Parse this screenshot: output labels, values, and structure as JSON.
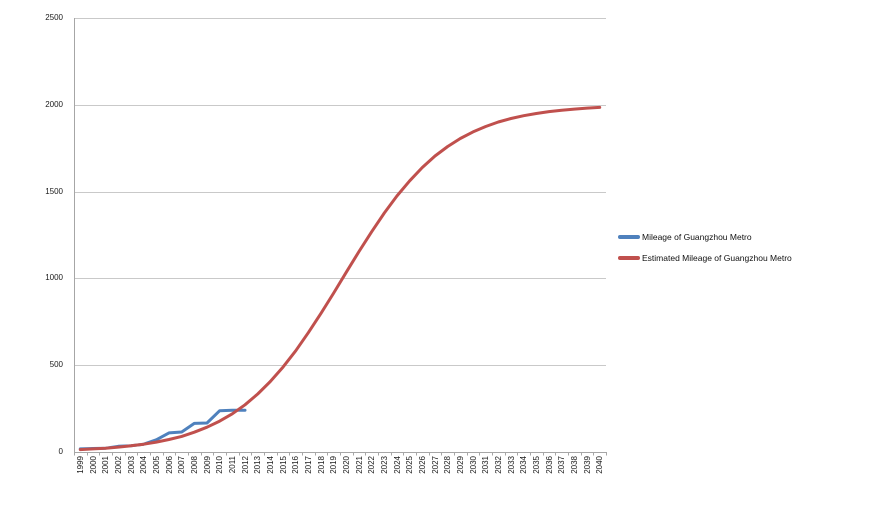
{
  "chart_data": {
    "type": "line",
    "title": "",
    "xlabel": "",
    "ylabel": "",
    "ylim": [
      0,
      2500
    ],
    "y_ticks": [
      0,
      500,
      1000,
      1500,
      2000,
      2500
    ],
    "grid": "horizontal",
    "legend_position": "right-middle",
    "categories": [
      "1999",
      "2000",
      "2001",
      "2002",
      "2003",
      "2004",
      "2005",
      "2006",
      "2007",
      "2008",
      "2009",
      "2010",
      "2011",
      "2012",
      "2013",
      "2014",
      "2015",
      "2016",
      "2017",
      "2018",
      "2019",
      "2020",
      "2021",
      "2022",
      "2023",
      "2024",
      "2025",
      "2026",
      "2027",
      "2028",
      "2029",
      "2030",
      "2031",
      "2032",
      "2033",
      "2034",
      "2035",
      "2036",
      "2037",
      "2038",
      "2039",
      "2040"
    ],
    "series": [
      {
        "name": "Mileage of Guangzhou Metro",
        "color": "#4F81BD",
        "values": [
          18,
          20,
          22,
          33,
          36,
          45,
          70,
          110,
          115,
          165,
          167,
          238,
          240,
          240
        ]
      },
      {
        "name": "Estimated Mileage of Guangzhou Metro",
        "color": "#C0504D",
        "values": [
          14,
          18,
          22,
          28,
          36,
          45,
          57,
          72,
          90,
          114,
          143,
          178,
          220,
          272,
          334,
          406,
          489,
          583,
          687,
          799,
          916,
          1036,
          1155,
          1269,
          1377,
          1475,
          1562,
          1639,
          1705,
          1760,
          1806,
          1844,
          1875,
          1901,
          1921,
          1937,
          1950,
          1961,
          1969,
          1975,
          1981,
          1985
        ]
      }
    ]
  },
  "colors": {
    "background": "#ffffff",
    "gridline": "#c9c9c9",
    "axis": "#a6a6a6",
    "tick_text": "#1a1a1a",
    "series_actual": "#4F81BD",
    "series_estimated": "#C0504D"
  }
}
